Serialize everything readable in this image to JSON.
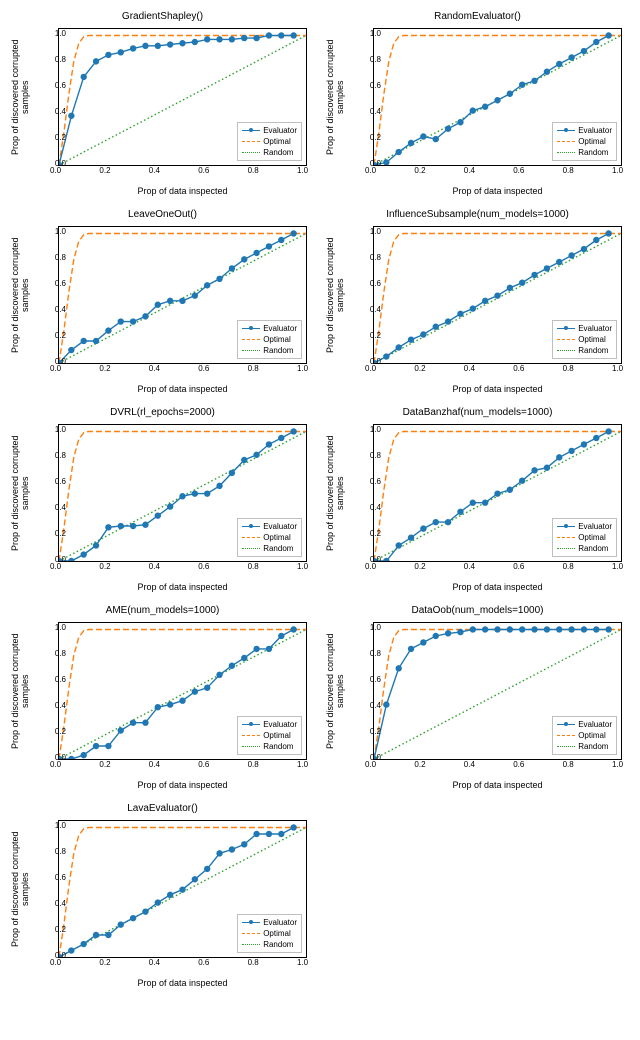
{
  "global": {
    "xlabel": "Prop of data inspected",
    "ylabel": "Prop of discovered corrupted samples",
    "xlim": [
      0.0,
      1.0
    ],
    "ylim": [
      0.0,
      1.05
    ],
    "xticks": [
      0.0,
      0.2,
      0.4,
      0.6,
      0.8,
      1.0
    ],
    "yticks": [
      0.0,
      0.2,
      0.4,
      0.6,
      0.8,
      1.0
    ],
    "series_labels": [
      "Evaluator",
      "Optimal",
      "Random"
    ],
    "colors": {
      "evaluator": "#1f77b4",
      "optimal": "#ff7f0e",
      "random": "#2ca02c",
      "axis": "#000000",
      "legend_border": "#bfbfbf",
      "background": "#ffffff"
    },
    "linewidth": 1.4,
    "marker_size": 3.2,
    "optimal_dash": "6,3",
    "random_dash": "1.5,2.5",
    "title_fontsize": 10,
    "label_fontsize": 9,
    "tick_fontsize": 8,
    "legend_fontsize": 8,
    "x_points": [
      0.0,
      0.05,
      0.1,
      0.15,
      0.2,
      0.25,
      0.3,
      0.35,
      0.4,
      0.45,
      0.5,
      0.55,
      0.6,
      0.65,
      0.7,
      0.75,
      0.8,
      0.85,
      0.9,
      0.95
    ],
    "optimal_y": [
      0.0,
      0.5,
      1.0,
      1.0,
      1.0,
      1.0,
      1.0,
      1.0,
      1.0,
      1.0,
      1.0,
      1.0,
      1.0,
      1.0,
      1.0,
      1.0,
      1.0,
      1.0,
      1.0,
      1.0
    ],
    "random_y": [
      0.0,
      0.05,
      0.1,
      0.15,
      0.2,
      0.25,
      0.3,
      0.35,
      0.4,
      0.45,
      0.5,
      0.55,
      0.6,
      0.65,
      0.7,
      0.75,
      0.8,
      0.85,
      0.9,
      0.95
    ]
  },
  "charts": [
    {
      "title": "GradientShapley()",
      "evaluator_y": [
        0.0,
        0.38,
        0.68,
        0.8,
        0.85,
        0.87,
        0.9,
        0.92,
        0.92,
        0.93,
        0.94,
        0.95,
        0.97,
        0.97,
        0.97,
        0.98,
        0.98,
        1.0,
        1.0,
        1.0
      ]
    },
    {
      "title": "RandomEvaluator()",
      "evaluator_y": [
        0.0,
        0.02,
        0.1,
        0.17,
        0.22,
        0.2,
        0.28,
        0.33,
        0.42,
        0.45,
        0.5,
        0.55,
        0.62,
        0.65,
        0.72,
        0.78,
        0.83,
        0.88,
        0.95,
        1.0
      ]
    },
    {
      "title": "LeaveOneOut()",
      "evaluator_y": [
        0.0,
        0.1,
        0.17,
        0.17,
        0.25,
        0.32,
        0.32,
        0.36,
        0.45,
        0.48,
        0.48,
        0.52,
        0.6,
        0.65,
        0.73,
        0.8,
        0.85,
        0.9,
        0.95,
        1.0
      ]
    },
    {
      "title": "InfluenceSubsample(num_models=1000)",
      "evaluator_y": [
        0.0,
        0.05,
        0.12,
        0.18,
        0.22,
        0.28,
        0.32,
        0.38,
        0.42,
        0.48,
        0.52,
        0.58,
        0.62,
        0.68,
        0.73,
        0.78,
        0.83,
        0.88,
        0.95,
        1.0
      ]
    },
    {
      "title": "DVRL(rl_epochs=2000)",
      "evaluator_y": [
        0.0,
        0.0,
        0.05,
        0.12,
        0.26,
        0.27,
        0.27,
        0.28,
        0.35,
        0.42,
        0.5,
        0.52,
        0.52,
        0.58,
        0.68,
        0.78,
        0.82,
        0.9,
        0.95,
        1.0
      ]
    },
    {
      "title": "DataBanzhaf(num_models=1000)",
      "evaluator_y": [
        0.0,
        0.0,
        0.12,
        0.18,
        0.25,
        0.3,
        0.3,
        0.38,
        0.45,
        0.45,
        0.52,
        0.55,
        0.62,
        0.7,
        0.72,
        0.8,
        0.85,
        0.9,
        0.95,
        1.0
      ]
    },
    {
      "title": "AME(num_models=1000)",
      "evaluator_y": [
        0.0,
        0.0,
        0.03,
        0.1,
        0.1,
        0.22,
        0.28,
        0.28,
        0.4,
        0.42,
        0.45,
        0.52,
        0.55,
        0.65,
        0.72,
        0.78,
        0.85,
        0.85,
        0.95,
        1.0
      ]
    },
    {
      "title": "DataOob(num_models=1000)",
      "evaluator_y": [
        0.0,
        0.42,
        0.7,
        0.85,
        0.9,
        0.95,
        0.97,
        0.98,
        1.0,
        1.0,
        1.0,
        1.0,
        1.0,
        1.0,
        1.0,
        1.0,
        1.0,
        1.0,
        1.0,
        1.0
      ]
    },
    {
      "title": "LavaEvaluator()",
      "evaluator_y": [
        0.0,
        0.05,
        0.1,
        0.17,
        0.17,
        0.25,
        0.3,
        0.35,
        0.42,
        0.48,
        0.52,
        0.6,
        0.68,
        0.8,
        0.83,
        0.87,
        0.95,
        0.95,
        0.95,
        1.0
      ]
    }
  ]
}
